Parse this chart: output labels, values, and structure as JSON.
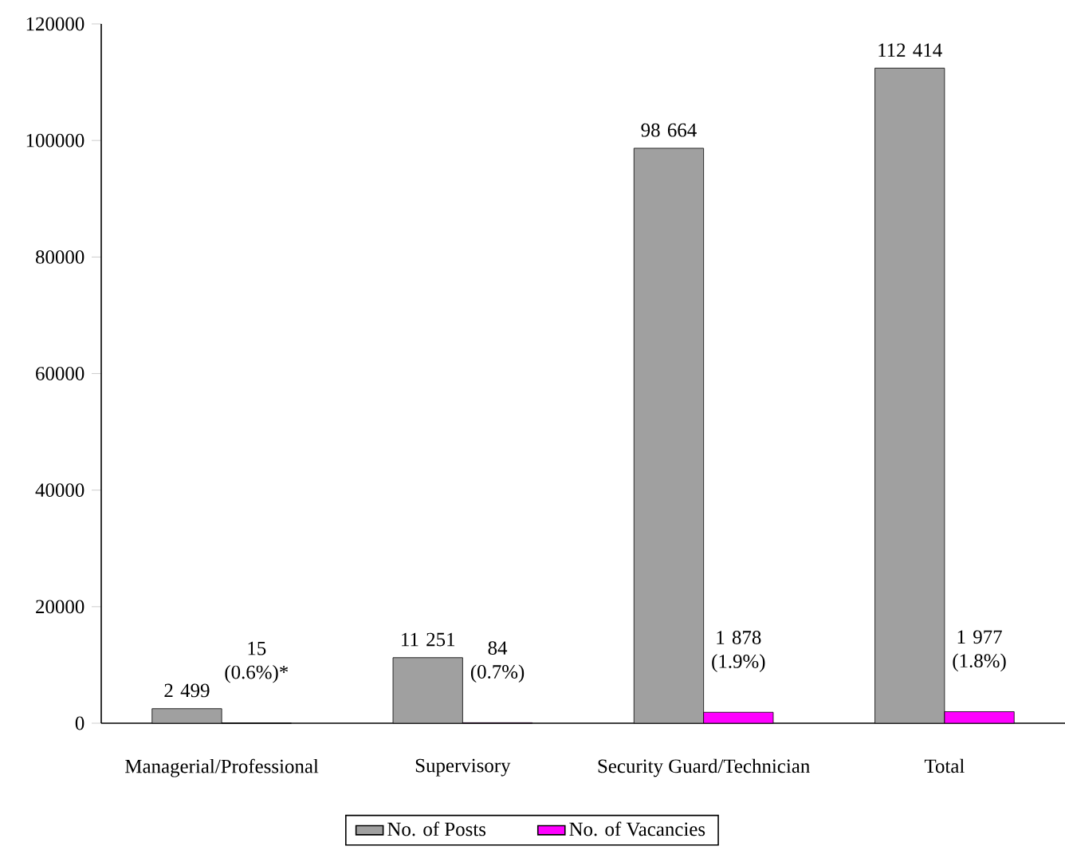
{
  "chart_data": {
    "type": "bar",
    "categories": [
      "Managerial/Professional",
      "Supervisory",
      "Security Guard/Technician",
      "Total"
    ],
    "series": [
      {
        "name": "No. of Posts",
        "color": "#a0a0a0",
        "values": [
          2499,
          11251,
          98664,
          112414
        ],
        "value_labels": [
          "2 499",
          "11 251",
          "98 664",
          "112 414"
        ]
      },
      {
        "name": "No. of Vacancies",
        "color": "#ff00ff",
        "values": [
          15,
          84,
          1878,
          1977
        ],
        "value_labels": [
          "15 (0.6%)*",
          "84 (0.7%)",
          "1 878 (1.9%)",
          "1 977 (1.8%)"
        ]
      }
    ],
    "ylim": [
      0,
      120000
    ],
    "yticks": [
      0,
      20000,
      40000,
      60000,
      80000,
      100000,
      120000
    ],
    "legend": "bottom",
    "grid": false
  }
}
